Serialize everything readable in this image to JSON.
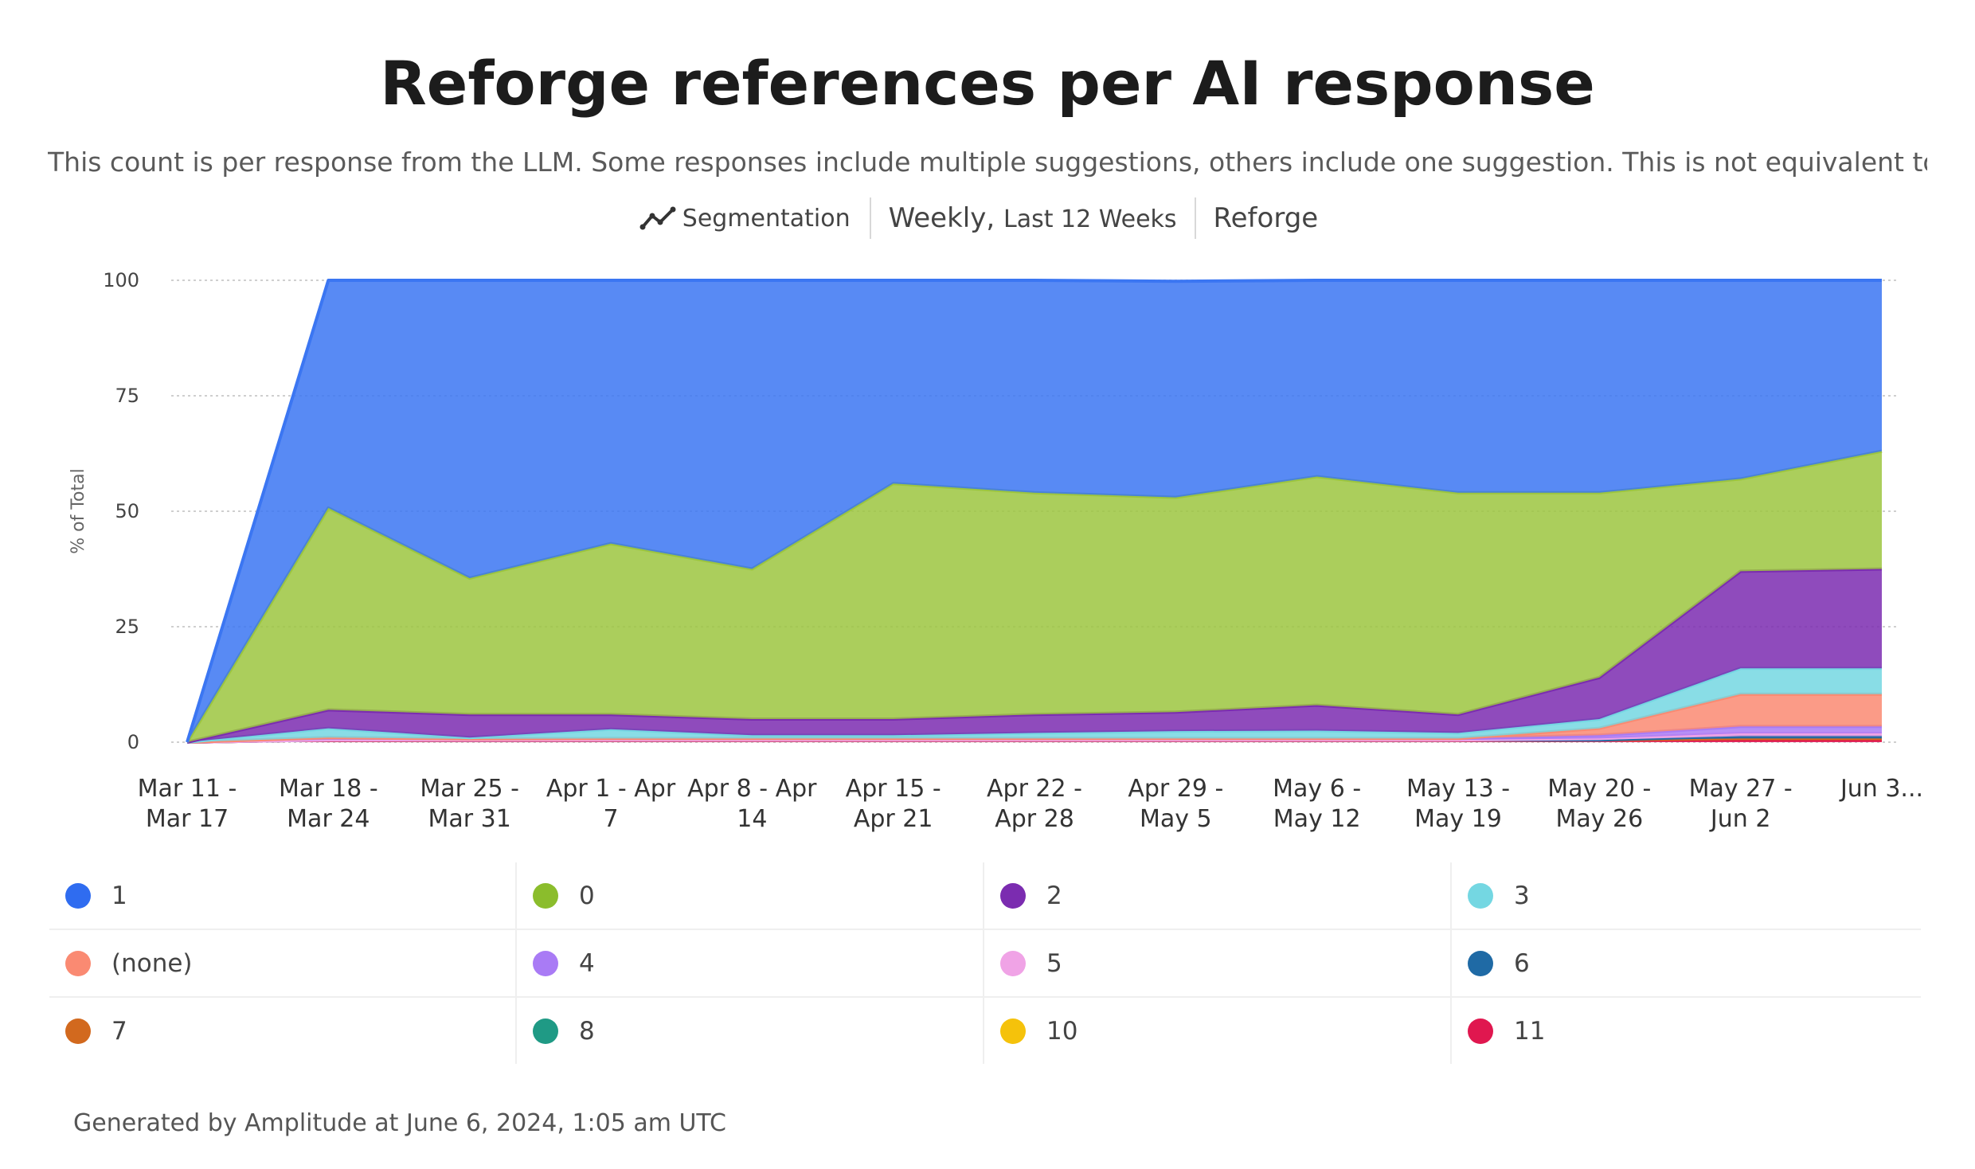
{
  "header": {
    "title": "Reforge references per AI response",
    "subtitle": "This count is per response from the LLM. Some responses include multiple suggestions, others include one suggestion. This is not equivalent to a ...",
    "segmentation_label": "Segmentation",
    "interval_label": "Weekly,",
    "range_label": "Last 12 Weeks",
    "filter_label": "Reforge"
  },
  "footer": {
    "generated": "Generated by Amplitude at June 6, 2024, 1:05 am UTC"
  },
  "chart_data": {
    "type": "area",
    "stacked": true,
    "title": "Reforge references per AI response",
    "ylabel": "% of Total",
    "xlabel": "",
    "ylim": [
      0,
      100
    ],
    "yticks": [
      0,
      25,
      50,
      75,
      100
    ],
    "grid": true,
    "categories": [
      [
        "Mar 11 -",
        "Mar 17"
      ],
      [
        "Mar 18 -",
        "Mar 24"
      ],
      [
        "Mar 25 -",
        "Mar 31"
      ],
      [
        "Apr 1 - Apr",
        "7"
      ],
      [
        "Apr 8 - Apr",
        "14"
      ],
      [
        "Apr 15 -",
        "Apr 21"
      ],
      [
        "Apr 22 -",
        "Apr 28"
      ],
      [
        "Apr 29 -",
        "May 5"
      ],
      [
        "May 6 -",
        "May 12"
      ],
      [
        "May 13 -",
        "May 19"
      ],
      [
        "May 20 -",
        "May 26"
      ],
      [
        "May 27 -",
        "Jun 2"
      ],
      [
        "Jun 3...",
        ""
      ]
    ],
    "series": [
      {
        "name": "11",
        "color": "#e0174f",
        "values": [
          0,
          0.5,
          0.5,
          0.5,
          0.5,
          0.5,
          0.5,
          0.5,
          0.5,
          0.5,
          0.5,
          0.5,
          0.5
        ]
      },
      {
        "name": "10",
        "color": "#f5c20b",
        "values": [
          0,
          0,
          0,
          0,
          0,
          0,
          0,
          0,
          0,
          0,
          0,
          0,
          0
        ]
      },
      {
        "name": "8",
        "color": "#1f9a85",
        "values": [
          0,
          0,
          0,
          0,
          0,
          0,
          0,
          0,
          0,
          0,
          0,
          0,
          0
        ]
      },
      {
        "name": "7",
        "color": "#d2691e",
        "values": [
          0,
          0,
          0,
          0,
          0,
          0,
          0,
          0,
          0,
          0,
          0,
          0.3,
          0.3
        ]
      },
      {
        "name": "6",
        "color": "#1f6aa5",
        "values": [
          0,
          0,
          0,
          0,
          0,
          0,
          0,
          0,
          0,
          0,
          0,
          0.5,
          0.5
        ]
      },
      {
        "name": "5",
        "color": "#f0a3e6",
        "values": [
          0,
          0,
          0,
          0,
          0,
          0,
          0,
          0,
          0,
          0,
          0.3,
          0.6,
          0.6
        ]
      },
      {
        "name": "4",
        "color": "#a97bf5",
        "values": [
          0,
          0.5,
          0.2,
          0.3,
          0.3,
          0.3,
          0.3,
          0.3,
          0.3,
          0.3,
          0.7,
          1.5,
          1.5
        ]
      },
      {
        "name": "(none)",
        "color": "#fa8a72",
        "values": [
          0,
          0,
          0,
          0,
          0,
          0,
          0,
          0,
          0,
          0,
          1.5,
          7,
          7
        ]
      },
      {
        "name": "3",
        "color": "#74d7e2",
        "values": [
          0,
          2,
          0.3,
          2,
          0.7,
          0.7,
          1.2,
          1.6,
          1.7,
          1.2,
          2,
          5.6,
          5.6
        ]
      },
      {
        "name": "2",
        "color": "#7b2cb0",
        "values": [
          0,
          4,
          5,
          3.2,
          3.5,
          3.5,
          4,
          4.1,
          5.5,
          4,
          9,
          21,
          21.5
        ]
      },
      {
        "name": "0",
        "color": "#9cc53f",
        "values": [
          0,
          43.7,
          29.5,
          37,
          32.5,
          51,
          48,
          46.5,
          49.5,
          48,
          40,
          20,
          25.5
        ]
      },
      {
        "name": "1",
        "color": "#3b76f2",
        "values": [
          0,
          49.3,
          64.5,
          57,
          62.5,
          44,
          46,
          46.8,
          42.5,
          46,
          46,
          43,
          37
        ]
      }
    ],
    "legend": [
      {
        "name": "1",
        "color": "#2f6cf0"
      },
      {
        "name": "0",
        "color": "#8bbd2c"
      },
      {
        "name": "2",
        "color": "#7b2cb0"
      },
      {
        "name": "3",
        "color": "#74d7e2"
      },
      {
        "name": "(none)",
        "color": "#fa8a72"
      },
      {
        "name": "4",
        "color": "#a97bf5"
      },
      {
        "name": "5",
        "color": "#f0a3e6"
      },
      {
        "name": "6",
        "color": "#1f6aa5"
      },
      {
        "name": "7",
        "color": "#d2691e"
      },
      {
        "name": "8",
        "color": "#1f9a85"
      },
      {
        "name": "10",
        "color": "#f5c20b"
      },
      {
        "name": "11",
        "color": "#e0174f"
      }
    ]
  }
}
